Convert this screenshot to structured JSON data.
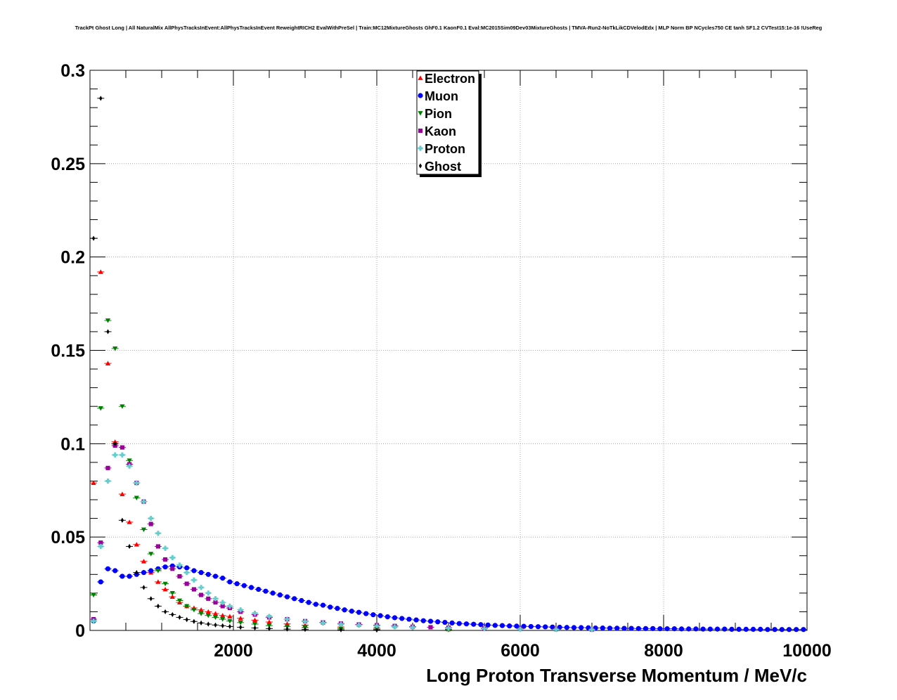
{
  "chart_data": {
    "type": "scatter",
    "title": "TrackPt Ghost Long | All NaturalMix AllPhysTracksInEvent:AllPhysTracksInEvent ReweightRICH2 EvalWithPreSel | Train:MC12MixtureGhosts GhF0.1 KaonF0.1 Eval:MC2015Sim09Dev03MixtureGhosts | TMVA-Run2-NoTkLikCDVelodEdx | MLP Norm BP NCycles750 CE tanh SF1.2 CVTest15:1e-16 !UseReg",
    "xlabel": "Long Proton Transverse Momentum / MeV/c",
    "ylabel": "",
    "xlim": [
      0,
      10000
    ],
    "ylim": [
      0,
      0.3
    ],
    "x_ticks": [
      "2000",
      "4000",
      "6000",
      "8000",
      "10000"
    ],
    "x_tick_values": [
      2000,
      4000,
      6000,
      8000,
      10000
    ],
    "y_ticks": [
      "0",
      "0.05",
      "0.1",
      "0.15",
      "0.2",
      "0.25",
      "0.3"
    ],
    "y_tick_values": [
      0,
      0.05,
      0.1,
      0.15,
      0.2,
      0.25,
      0.3
    ],
    "grid": true,
    "legend_position": "top-center",
    "series": [
      {
        "name": "Electron",
        "color": "#ff0000",
        "marker": "triangle-up",
        "x": [
          50,
          150,
          250,
          350,
          450,
          550,
          650,
          750,
          850,
          950,
          1050,
          1150,
          1250,
          1350,
          1450,
          1550,
          1650,
          1750,
          1850,
          1950,
          2100,
          2300,
          2500,
          2750,
          3000,
          3500,
          4000,
          5000
        ],
        "y": [
          0.079,
          0.192,
          0.143,
          0.101,
          0.073,
          0.058,
          0.046,
          0.037,
          0.031,
          0.026,
          0.022,
          0.018,
          0.015,
          0.013,
          0.012,
          0.011,
          0.01,
          0.009,
          0.008,
          0.0075,
          0.0065,
          0.0055,
          0.0045,
          0.0035,
          0.0028,
          0.0018,
          0.0012,
          0.0006
        ]
      },
      {
        "name": "Muon",
        "color": "#0000ff",
        "marker": "circle",
        "x": [
          50,
          150,
          250,
          350,
          450,
          550,
          650,
          750,
          850,
          950,
          1050,
          1150,
          1250,
          1350,
          1450,
          1550,
          1650,
          1750,
          1850,
          1950,
          2050,
          2150,
          2250,
          2350,
          2450,
          2550,
          2650,
          2750,
          2850,
          2950,
          3050,
          3150,
          3250,
          3350,
          3450,
          3550,
          3650,
          3750,
          3850,
          3950,
          4050,
          4150,
          4250,
          4350,
          4450,
          4550,
          4650,
          4750,
          4850,
          4950,
          5050,
          5150,
          5250,
          5350,
          5450,
          5550,
          5650,
          5750,
          5850,
          5950,
          6050,
          6150,
          6250,
          6350,
          6450,
          6550,
          6650,
          6750,
          6850,
          6950,
          7050,
          7150,
          7250,
          7350,
          7450,
          7550,
          7650,
          7750,
          7850,
          7950,
          8050,
          8150,
          8250,
          8350,
          8450,
          8550,
          8650,
          8750,
          8850,
          8950,
          9050,
          9150,
          9250,
          9350,
          9450,
          9550,
          9650,
          9750,
          9850,
          9950
        ],
        "y": [
          0.005,
          0.026,
          0.033,
          0.032,
          0.029,
          0.029,
          0.03,
          0.031,
          0.032,
          0.033,
          0.034,
          0.0345,
          0.034,
          0.0335,
          0.032,
          0.031,
          0.03,
          0.029,
          0.028,
          0.026,
          0.025,
          0.024,
          0.023,
          0.022,
          0.021,
          0.02,
          0.019,
          0.018,
          0.017,
          0.016,
          0.015,
          0.014,
          0.0135,
          0.0125,
          0.0118,
          0.011,
          0.0103,
          0.0097,
          0.009,
          0.0084,
          0.0079,
          0.0073,
          0.0068,
          0.0064,
          0.006,
          0.0056,
          0.0052,
          0.0049,
          0.0046,
          0.0043,
          0.004,
          0.0037,
          0.0035,
          0.0033,
          0.0031,
          0.0029,
          0.0027,
          0.0026,
          0.0024,
          0.0023,
          0.0022,
          0.0021,
          0.002,
          0.0019,
          0.0018,
          0.0017,
          0.0016,
          0.0015,
          0.0015,
          0.0014,
          0.0013,
          0.0013,
          0.0012,
          0.0012,
          0.0011,
          0.0011,
          0.001,
          0.001,
          0.001,
          0.0009,
          0.0009,
          0.0009,
          0.0008,
          0.0008,
          0.0008,
          0.0007,
          0.0007,
          0.0007,
          0.0007,
          0.0006,
          0.0006,
          0.0006,
          0.0006,
          0.0006,
          0.0005,
          0.0005,
          0.0005,
          0.0005,
          0.0005,
          0.0005
        ]
      },
      {
        "name": "Pion",
        "color": "#008000",
        "marker": "triangle-down",
        "x": [
          50,
          150,
          250,
          350,
          450,
          550,
          650,
          750,
          850,
          950,
          1050,
          1150,
          1250,
          1350,
          1450,
          1550,
          1650,
          1750,
          1850,
          1950,
          2100,
          2300,
          2500,
          2750,
          3000,
          3500,
          4000,
          5000
        ],
        "y": [
          0.019,
          0.119,
          0.166,
          0.151,
          0.12,
          0.091,
          0.071,
          0.054,
          0.041,
          0.032,
          0.025,
          0.02,
          0.016,
          0.013,
          0.011,
          0.009,
          0.008,
          0.007,
          0.006,
          0.005,
          0.0042,
          0.0034,
          0.0026,
          0.002,
          0.0015,
          0.001,
          0.0006,
          0.0003
        ]
      },
      {
        "name": "Kaon",
        "color": "#990099",
        "marker": "square",
        "x": [
          50,
          150,
          250,
          350,
          450,
          550,
          650,
          750,
          850,
          950,
          1050,
          1150,
          1250,
          1350,
          1450,
          1550,
          1650,
          1750,
          1850,
          1950,
          2100,
          2300,
          2500,
          2750,
          3000,
          3250,
          3500,
          3750,
          4000,
          4250,
          4500,
          4750,
          5000,
          5500,
          6000,
          6500,
          7000
        ],
        "y": [
          0.006,
          0.047,
          0.087,
          0.099,
          0.098,
          0.089,
          0.079,
          0.069,
          0.057,
          0.045,
          0.038,
          0.033,
          0.029,
          0.025,
          0.022,
          0.019,
          0.017,
          0.015,
          0.013,
          0.012,
          0.01,
          0.0085,
          0.007,
          0.006,
          0.005,
          0.0043,
          0.0037,
          0.0032,
          0.0028,
          0.0024,
          0.002,
          0.0017,
          0.0015,
          0.0012,
          0.0009,
          0.0007,
          0.0005
        ]
      },
      {
        "name": "Proton",
        "color": "#66cccc",
        "marker": "cross",
        "x": [
          50,
          150,
          250,
          350,
          450,
          550,
          650,
          750,
          850,
          950,
          1050,
          1150,
          1250,
          1350,
          1450,
          1550,
          1650,
          1750,
          1850,
          1950,
          2100,
          2300,
          2500,
          2750,
          3000,
          3250,
          3500,
          3750,
          4000,
          4250,
          4500,
          5000,
          5500,
          6000,
          6500,
          7000
        ],
        "y": [
          0.005,
          0.045,
          0.08,
          0.094,
          0.094,
          0.088,
          0.079,
          0.069,
          0.06,
          0.052,
          0.044,
          0.039,
          0.035,
          0.031,
          0.027,
          0.023,
          0.02,
          0.017,
          0.015,
          0.013,
          0.011,
          0.0092,
          0.0075,
          0.006,
          0.0048,
          0.004,
          0.0033,
          0.0028,
          0.0023,
          0.0019,
          0.0016,
          0.0012,
          0.0009,
          0.0007,
          0.0005,
          0.0004
        ]
      },
      {
        "name": "Ghost",
        "color": "#000000",
        "marker": "diamond",
        "x": [
          50,
          150,
          250,
          350,
          450,
          550,
          650,
          750,
          850,
          950,
          1050,
          1150,
          1250,
          1350,
          1450,
          1550,
          1650,
          1750,
          1850,
          1950,
          2100,
          2300,
          2500,
          2750,
          3000,
          3500,
          4000
        ],
        "y": [
          0.21,
          0.285,
          0.16,
          0.1,
          0.059,
          0.045,
          0.031,
          0.023,
          0.017,
          0.013,
          0.01,
          0.0085,
          0.007,
          0.0058,
          0.0048,
          0.004,
          0.0034,
          0.0029,
          0.0025,
          0.0021,
          0.0017,
          0.0013,
          0.001,
          0.0007,
          0.0005,
          0.0003,
          0.0002
        ]
      }
    ]
  }
}
